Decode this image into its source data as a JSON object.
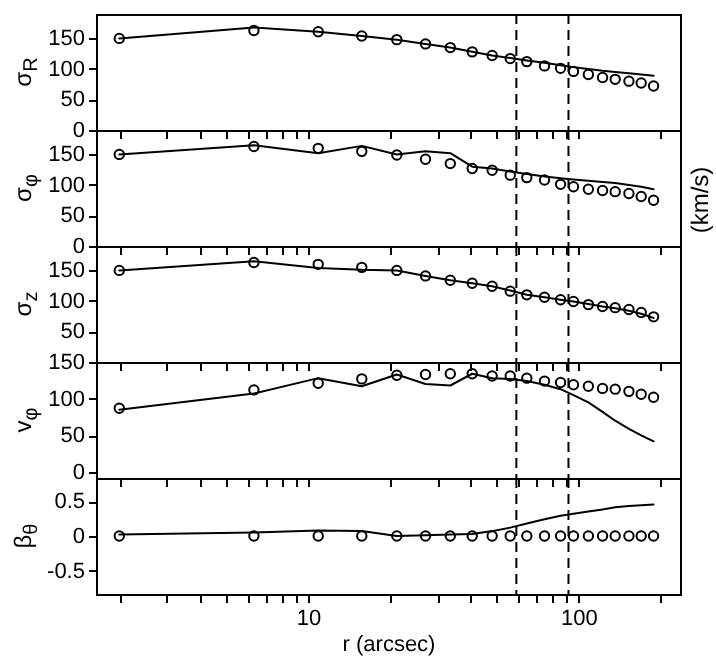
{
  "chart_data": [
    {
      "type": "line",
      "ylabel": "σ$_{R}$",
      "log": "x",
      "xlim": [
        1.64,
        238
      ],
      "ylim": [
        0,
        190
      ],
      "tick_labels": "y",
      "xticks": [
        {
          "value": 2,
          "label": null
        },
        {
          "value": 3,
          "label": null
        },
        {
          "value": 4,
          "label": null
        },
        {
          "value": 5,
          "label": null
        },
        {
          "value": 6,
          "label": null
        },
        {
          "value": 7,
          "label": null
        },
        {
          "value": 8,
          "label": null
        },
        {
          "value": 9,
          "label": null
        },
        {
          "value": 10,
          "label": null
        },
        {
          "value": 20,
          "label": null
        },
        {
          "value": 30,
          "label": null
        },
        {
          "value": 40,
          "label": null
        },
        {
          "value": 50,
          "label": null
        },
        {
          "value": 60,
          "label": null
        },
        {
          "value": 70,
          "label": null
        },
        {
          "value": 80,
          "label": null
        },
        {
          "value": 90,
          "label": null
        },
        {
          "value": 100,
          "label": null
        },
        {
          "value": 200,
          "label": null
        }
      ],
      "yticks": [
        0,
        50,
        100,
        150
      ],
      "x": [
        2,
        6.3,
        10.9,
        15.8,
        21.3,
        27.2,
        33.6,
        40.5,
        48,
        56,
        64.5,
        75,
        86,
        96,
        109,
        123,
        137,
        154,
        171,
        190
      ],
      "series": [
        {
          "type": "scatter",
          "color": "#000000",
          "marker": "circle",
          "values": [
            150,
            163,
            161,
            154,
            148,
            141,
            135,
            128,
            122,
            117,
            112,
            105,
            101,
            96,
            91,
            86,
            83,
            80,
            77,
            72
          ]
        },
        {
          "type": "line",
          "color": "#000000",
          "line_style": "solid",
          "values": [
            150,
            168,
            161,
            154,
            148,
            141,
            135,
            128,
            122,
            118,
            114,
            110,
            106,
            103,
            100,
            97,
            95,
            93,
            91,
            89
          ]
        }
      ],
      "ref_lines": [
        {
          "axis": "x",
          "value": 59,
          "line_style": "dashed"
        },
        {
          "axis": "x",
          "value": 92,
          "line_style": "dashed"
        }
      ]
    },
    {
      "type": "line",
      "ylabel": "σ$_{φ}$",
      "log": "x",
      "xlim": [
        1.64,
        238
      ],
      "ylim": [
        0,
        190
      ],
      "tick_labels": "y",
      "xticks": [
        {
          "value": 2,
          "label": null
        },
        {
          "value": 3,
          "label": null
        },
        {
          "value": 4,
          "label": null
        },
        {
          "value": 5,
          "label": null
        },
        {
          "value": 6,
          "label": null
        },
        {
          "value": 7,
          "label": null
        },
        {
          "value": 8,
          "label": null
        },
        {
          "value": 9,
          "label": null
        },
        {
          "value": 10,
          "label": null
        },
        {
          "value": 20,
          "label": null
        },
        {
          "value": 30,
          "label": null
        },
        {
          "value": 40,
          "label": null
        },
        {
          "value": 50,
          "label": null
        },
        {
          "value": 60,
          "label": null
        },
        {
          "value": 70,
          "label": null
        },
        {
          "value": 80,
          "label": null
        },
        {
          "value": 90,
          "label": null
        },
        {
          "value": 100,
          "label": null
        },
        {
          "value": 200,
          "label": null
        }
      ],
      "yticks": [
        0,
        50,
        100,
        150
      ],
      "x": [
        2,
        6.3,
        10.9,
        15.8,
        21.3,
        27.2,
        33.6,
        40.5,
        48,
        56,
        64.5,
        75,
        86,
        96,
        109,
        123,
        137,
        154,
        171,
        190
      ],
      "series": [
        {
          "type": "scatter",
          "color": "#000000",
          "marker": "circle",
          "values": [
            150,
            163,
            160,
            155,
            149,
            142,
            135,
            127,
            124,
            116,
            112,
            108,
            101,
            97,
            93,
            91,
            89,
            86,
            81,
            75
          ]
        },
        {
          "type": "line",
          "color": "#000000",
          "line_style": "solid",
          "values": [
            150,
            165,
            152,
            164,
            150,
            155,
            152,
            130,
            127,
            122,
            118,
            114,
            111,
            109,
            107,
            105,
            103,
            100,
            97,
            93
          ]
        }
      ],
      "ref_lines": [
        {
          "axis": "x",
          "value": 59,
          "line_style": "dashed"
        },
        {
          "axis": "x",
          "value": 92,
          "line_style": "dashed"
        }
      ],
      "annotations": [
        "(km/s)"
      ]
    },
    {
      "type": "line",
      "ylabel": "σ$_{z}$",
      "log": "x",
      "xlim": [
        1.64,
        238
      ],
      "ylim": [
        0,
        190
      ],
      "tick_labels": "y",
      "xticks": [
        {
          "value": 2,
          "label": null
        },
        {
          "value": 3,
          "label": null
        },
        {
          "value": 4,
          "label": null
        },
        {
          "value": 5,
          "label": null
        },
        {
          "value": 6,
          "label": null
        },
        {
          "value": 7,
          "label": null
        },
        {
          "value": 8,
          "label": null
        },
        {
          "value": 9,
          "label": null
        },
        {
          "value": 10,
          "label": null
        },
        {
          "value": 20,
          "label": null
        },
        {
          "value": 30,
          "label": null
        },
        {
          "value": 40,
          "label": null
        },
        {
          "value": 50,
          "label": null
        },
        {
          "value": 60,
          "label": null
        },
        {
          "value": 70,
          "label": null
        },
        {
          "value": 80,
          "label": null
        },
        {
          "value": 90,
          "label": null
        },
        {
          "value": 100,
          "label": null
        },
        {
          "value": 200,
          "label": null
        }
      ],
      "yticks": [
        50,
        100,
        150
      ],
      "x": [
        2,
        6.3,
        10.9,
        15.8,
        21.3,
        27.2,
        33.6,
        40.5,
        48,
        56,
        64.5,
        75,
        86,
        96,
        109,
        123,
        137,
        154,
        171,
        190
      ],
      "series": [
        {
          "type": "scatter",
          "color": "#000000",
          "marker": "circle",
          "values": [
            150,
            163,
            160,
            155,
            150,
            141,
            134,
            129,
            124,
            116,
            110,
            106,
            102,
            99,
            94,
            91,
            89,
            86,
            81,
            74
          ]
        },
        {
          "type": "line",
          "color": "#000000",
          "line_style": "solid",
          "values": [
            150,
            165,
            154,
            151,
            150,
            141,
            134,
            129,
            124,
            117,
            110,
            106,
            102,
            99,
            95,
            91,
            88,
            84,
            79,
            72
          ]
        }
      ],
      "ref_lines": [
        {
          "axis": "x",
          "value": 59,
          "line_style": "dashed"
        },
        {
          "axis": "x",
          "value": 92,
          "line_style": "dashed"
        }
      ]
    },
    {
      "type": "line",
      "ylabel": "v$_{φ}$",
      "log": "x",
      "xlim": [
        1.64,
        238
      ],
      "ylim": [
        -8,
        150
      ],
      "tick_labels": "y",
      "xticks": [
        {
          "value": 2,
          "label": null
        },
        {
          "value": 3,
          "label": null
        },
        {
          "value": 4,
          "label": null
        },
        {
          "value": 5,
          "label": null
        },
        {
          "value": 6,
          "label": null
        },
        {
          "value": 7,
          "label": null
        },
        {
          "value": 8,
          "label": null
        },
        {
          "value": 9,
          "label": null
        },
        {
          "value": 10,
          "label": null
        },
        {
          "value": 20,
          "label": null
        },
        {
          "value": 30,
          "label": null
        },
        {
          "value": 40,
          "label": null
        },
        {
          "value": 50,
          "label": null
        },
        {
          "value": 60,
          "label": null
        },
        {
          "value": 70,
          "label": null
        },
        {
          "value": 80,
          "label": null
        },
        {
          "value": 90,
          "label": null
        },
        {
          "value": 100,
          "label": null
        },
        {
          "value": 200,
          "label": null
        }
      ],
      "yticks": [
        0,
        50,
        100,
        150
      ],
      "x": [
        2,
        6.3,
        10.9,
        15.8,
        21.3,
        27.2,
        33.6,
        40.5,
        48,
        56,
        64.5,
        75,
        86,
        96,
        109,
        123,
        137,
        154,
        171,
        190
      ],
      "series": [
        {
          "type": "scatter",
          "color": "#000000",
          "marker": "circle",
          "values": [
            87,
            112,
            121,
            127,
            132,
            133,
            134,
            134,
            131,
            131,
            128,
            124,
            122,
            119,
            117,
            114,
            113,
            110,
            106,
            102
          ]
        },
        {
          "type": "line",
          "color": "#000000",
          "line_style": "solid",
          "values": [
            85,
            107,
            128,
            117,
            133,
            120,
            118,
            134,
            128,
            127,
            124,
            119,
            113,
            105,
            95,
            82,
            70,
            59,
            50,
            42
          ]
        }
      ],
      "ref_lines": [
        {
          "axis": "x",
          "value": 59,
          "line_style": "dashed"
        },
        {
          "axis": "x",
          "value": 92,
          "line_style": "dashed"
        }
      ]
    },
    {
      "type": "line",
      "ylabel": "β$_{θ}$",
      "xlabel": "r (arcsec)",
      "log": "x",
      "xlim": [
        1.64,
        238
      ],
      "ylim": [
        -0.83,
        0.83
      ],
      "xticks": [
        {
          "value": 2,
          "label": null
        },
        {
          "value": 3,
          "label": null
        },
        {
          "value": 4,
          "label": null
        },
        {
          "value": 5,
          "label": null
        },
        {
          "value": 6,
          "label": null
        },
        {
          "value": 7,
          "label": null
        },
        {
          "value": 8,
          "label": null
        },
        {
          "value": 9,
          "label": null
        },
        10,
        {
          "value": 20,
          "label": null
        },
        {
          "value": 30,
          "label": null
        },
        {
          "value": 40,
          "label": null
        },
        {
          "value": 50,
          "label": null
        },
        {
          "value": 60,
          "label": null
        },
        {
          "value": 70,
          "label": null
        },
        {
          "value": 80,
          "label": null
        },
        {
          "value": 90,
          "label": null
        },
        100,
        {
          "value": 200,
          "label": null
        }
      ],
      "yticks": [
        -0.5,
        0,
        0.5
      ],
      "x": [
        2,
        6.3,
        10.9,
        15.8,
        21.3,
        27.2,
        33.6,
        40.5,
        48,
        56,
        64.5,
        75,
        86,
        96,
        109,
        123,
        137,
        154,
        171,
        190
      ],
      "series": [
        {
          "type": "scatter",
          "color": "#000000",
          "marker": "circle",
          "values": [
            0,
            0,
            0,
            0,
            0,
            0,
            0,
            0,
            0,
            0,
            0,
            0,
            0,
            0,
            0,
            0,
            0,
            0,
            0,
            0
          ]
        },
        {
          "type": "line",
          "color": "#000000",
          "line_style": "solid",
          "values": [
            0.02,
            0.05,
            0.08,
            0.07,
            0,
            0.01,
            0.02,
            0.03,
            0.07,
            0.12,
            0.18,
            0.24,
            0.29,
            0.32,
            0.35,
            0.38,
            0.41,
            0.43,
            0.44,
            0.45
          ]
        }
      ],
      "ref_lines": [
        {
          "axis": "x",
          "value": 59,
          "line_style": "dashed"
        },
        {
          "axis": "x",
          "value": 92,
          "line_style": "dashed"
        }
      ]
    }
  ]
}
